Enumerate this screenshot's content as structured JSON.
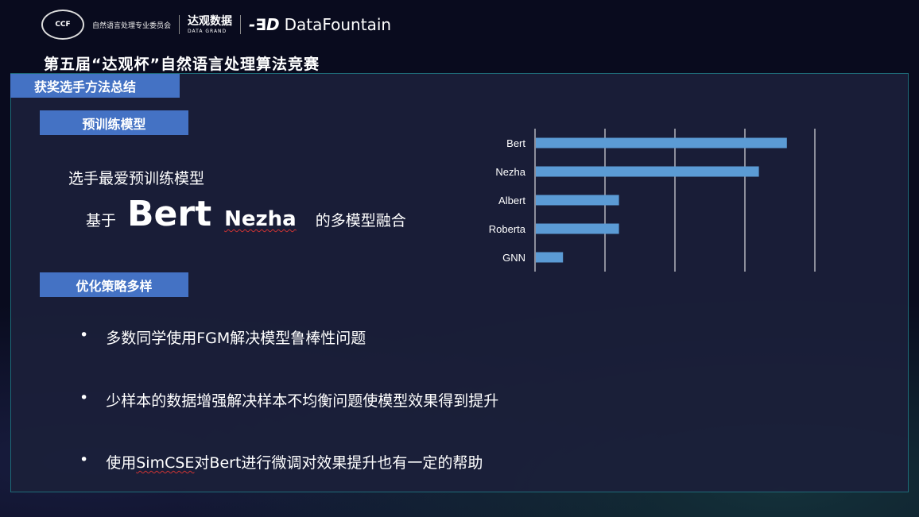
{
  "header": {
    "logo_ccf": "CCF",
    "logo_ccf_org": "自然语言处理专业委员会",
    "logo_datagrand_cn": "达观数据",
    "logo_datagrand_en": "DATA GRAND",
    "logo_datafountain": "DataFountain",
    "title": "第五届“达观杯”自然语言处理算法竞赛"
  },
  "section_title": "获奖选手方法总结",
  "pretrain": {
    "label": "预训练模型",
    "favorite": "选手最爱预训练模型",
    "prefix": "基于",
    "model1": "Bert",
    "model2": "Nezha",
    "suffix": "的多模型融合"
  },
  "strategy": {
    "label": "优化策略多样",
    "bullets": [
      {
        "text": "多数同学使用FGM解决模型鲁棒性问题"
      },
      {
        "text": "少样本的数据增强解决样本不均衡问题使模型效果得到提升"
      },
      {
        "pre": "使用",
        "mark": "SimCSE",
        "post": "对Bert进行微调对效果提升也有一定的帮助"
      }
    ]
  },
  "colors": {
    "accent": "#4472c4",
    "bar": "#5b9bd5",
    "panel": "#1b203a"
  },
  "chart_data": {
    "type": "bar",
    "orientation": "horizontal",
    "categories": [
      "Bert",
      "Nezha",
      "Albert",
      "Roberta",
      "GNN"
    ],
    "values": [
      9,
      8,
      3,
      3,
      1
    ],
    "xlim": [
      0,
      10
    ],
    "grid": true,
    "title": "",
    "xlabel": "",
    "ylabel": ""
  }
}
